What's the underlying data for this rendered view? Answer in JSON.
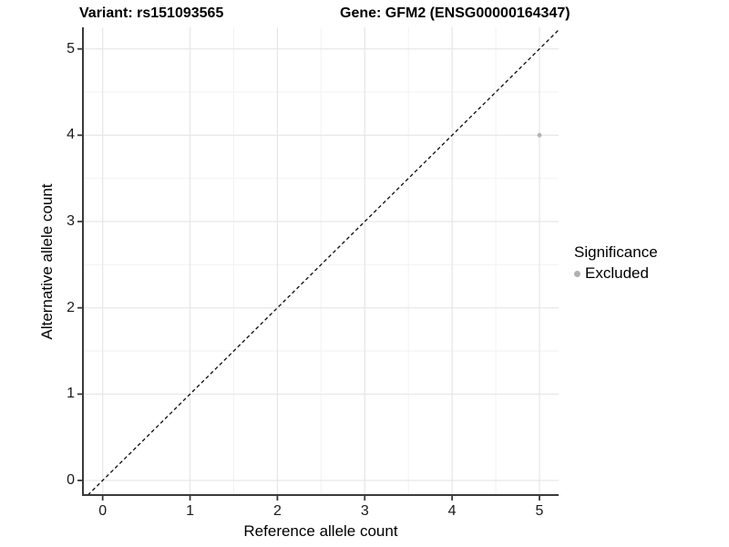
{
  "chart_data": {
    "type": "scatter",
    "titles": {
      "variant": "Variant: rs151093565",
      "gene": "Gene: GFM2 (ENSG00000164347)"
    },
    "xlabel": "Reference allele count",
    "ylabel": "Alternative allele count",
    "xticks": [
      0,
      1,
      2,
      3,
      4,
      5
    ],
    "yticks": [
      0,
      1,
      2,
      3,
      4,
      5
    ],
    "xlim": [
      -0.226,
      5.219
    ],
    "ylim": [
      -0.169,
      5.25
    ],
    "grid": {
      "major": true,
      "minor": true,
      "minor_step": 0.5
    },
    "points": [
      {
        "x": 5,
        "y": 4,
        "series": "Excluded"
      }
    ],
    "identity_line": {
      "slope": 1,
      "intercept": 0,
      "style": "dashed"
    },
    "legend": {
      "title": "Significance",
      "position": "right",
      "items": [
        {
          "label": "Excluded",
          "color": "#b0b0b0"
        }
      ]
    },
    "colors": {
      "point": "#b4b4b4",
      "grid_major": "#e6e6e6",
      "grid_minor": "#f2f2f2",
      "axis": "#3a3a3a",
      "dashed_line": "#0a0a0a",
      "background": "#ffffff"
    }
  }
}
